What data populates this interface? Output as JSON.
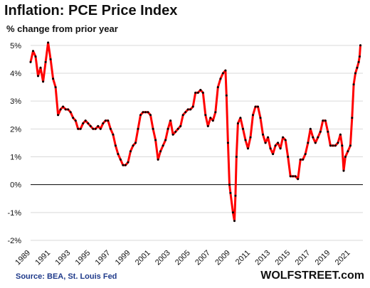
{
  "title": "Inflation: PCE Price Index",
  "subtitle": "% change from prior year",
  "source": "Source: BEA, St. Louis Fed",
  "watermark": "WOLFSTREET.com",
  "colors": {
    "line": "#ff0000",
    "dots": "#000000",
    "grid": "#d9d9d9",
    "zero": "#000000"
  },
  "chart_data": {
    "type": "line",
    "title": "Inflation: PCE Price Index",
    "subtitle": "% change from prior year",
    "xlabel": "",
    "ylabel": "",
    "xlim": [
      1989.0,
      2022.25
    ],
    "ylim": [
      -2,
      5.2
    ],
    "x_ticks": [
      "1989",
      "1991",
      "1993",
      "1995",
      "1997",
      "1999",
      "2001",
      "2003",
      "2005",
      "2007",
      "2009",
      "2011",
      "2013",
      "2015",
      "2017",
      "2019",
      "2021"
    ],
    "y_ticks": [
      "-2%",
      "-1%",
      "0%",
      "1%",
      "2%",
      "3%",
      "4%",
      "5%"
    ],
    "grid": "horizontal",
    "zero_line": true,
    "series": [
      {
        "x": [
          1989.0,
          1989.25,
          1989.5,
          1989.75,
          1990.0,
          1990.25,
          1990.5,
          1990.75,
          1991.0,
          1991.25,
          1991.5,
          1991.75,
          1992.0,
          1992.25,
          1992.5,
          1992.75,
          1993.0,
          1993.25,
          1993.5,
          1993.75,
          1994.0,
          1994.25,
          1994.5,
          1994.75,
          1995.0,
          1995.25,
          1995.5,
          1995.75,
          1996.0,
          1996.25,
          1996.5,
          1996.75,
          1997.0,
          1997.25,
          1997.5,
          1997.75,
          1998.0,
          1998.25,
          1998.5,
          1998.75,
          1999.0,
          1999.25,
          1999.5,
          1999.75,
          2000.0,
          2000.25,
          2000.5,
          2000.75,
          2001.0,
          2001.25,
          2001.5,
          2001.75,
          2002.0,
          2002.25,
          2002.5,
          2002.75,
          2003.0,
          2003.25,
          2003.5,
          2003.75,
          2004.0,
          2004.25,
          2004.5,
          2004.75,
          2005.0,
          2005.25,
          2005.5,
          2005.75,
          2006.0,
          2006.25,
          2006.5,
          2006.75,
          2007.0,
          2007.25,
          2007.5,
          2007.75,
          2008.0,
          2008.25,
          2008.5,
          2008.6,
          2008.75,
          2008.9,
          2009.0,
          2009.25,
          2009.4,
          2009.5,
          2009.6,
          2009.75,
          2010.0,
          2010.25,
          2010.5,
          2010.75,
          2011.0,
          2011.25,
          2011.5,
          2011.75,
          2012.0,
          2012.25,
          2012.5,
          2012.75,
          2013.0,
          2013.25,
          2013.5,
          2013.75,
          2014.0,
          2014.25,
          2014.5,
          2014.75,
          2015.0,
          2015.25,
          2015.5,
          2015.75,
          2016.0,
          2016.25,
          2016.5,
          2016.75,
          2017.0,
          2017.25,
          2017.5,
          2017.75,
          2018.0,
          2018.25,
          2018.5,
          2018.75,
          2019.0,
          2019.25,
          2019.5,
          2019.75,
          2020.0,
          2020.17,
          2020.33,
          2020.5,
          2020.75,
          2021.0,
          2021.17,
          2021.33,
          2021.5,
          2021.67,
          2021.83,
          2021.92,
          2022.0
        ],
        "y": [
          4.4,
          4.8,
          4.6,
          3.9,
          4.2,
          3.7,
          4.4,
          5.1,
          4.5,
          3.8,
          3.5,
          2.5,
          2.7,
          2.8,
          2.7,
          2.7,
          2.6,
          2.4,
          2.3,
          2.0,
          2.0,
          2.2,
          2.3,
          2.2,
          2.1,
          2.0,
          2.0,
          2.1,
          2.0,
          2.2,
          2.3,
          2.3,
          2.0,
          1.8,
          1.4,
          1.1,
          0.9,
          0.7,
          0.7,
          0.8,
          1.2,
          1.4,
          1.5,
          2.0,
          2.5,
          2.6,
          2.6,
          2.6,
          2.5,
          2.0,
          1.6,
          0.9,
          1.2,
          1.4,
          1.6,
          2.0,
          2.3,
          1.8,
          1.9,
          2.0,
          2.1,
          2.5,
          2.6,
          2.7,
          2.7,
          2.8,
          3.3,
          3.3,
          3.4,
          3.3,
          2.5,
          2.1,
          2.4,
          2.3,
          2.6,
          3.5,
          3.8,
          4.0,
          4.1,
          3.2,
          1.5,
          0.0,
          -0.3,
          -1.0,
          -1.3,
          -0.4,
          1.0,
          2.2,
          2.4,
          2.0,
          1.6,
          1.3,
          1.7,
          2.5,
          2.8,
          2.8,
          2.4,
          1.8,
          1.5,
          1.7,
          1.3,
          1.1,
          1.4,
          1.5,
          1.3,
          1.7,
          1.6,
          1.0,
          0.3,
          0.3,
          0.3,
          0.2,
          0.9,
          0.9,
          1.1,
          1.5,
          2.0,
          1.7,
          1.5,
          1.7,
          1.9,
          2.3,
          2.3,
          1.9,
          1.4,
          1.4,
          1.4,
          1.5,
          1.8,
          1.4,
          0.5,
          1.0,
          1.2,
          1.4,
          2.4,
          3.6,
          4.0,
          4.2,
          4.4,
          4.6,
          5.0
        ]
      }
    ]
  }
}
